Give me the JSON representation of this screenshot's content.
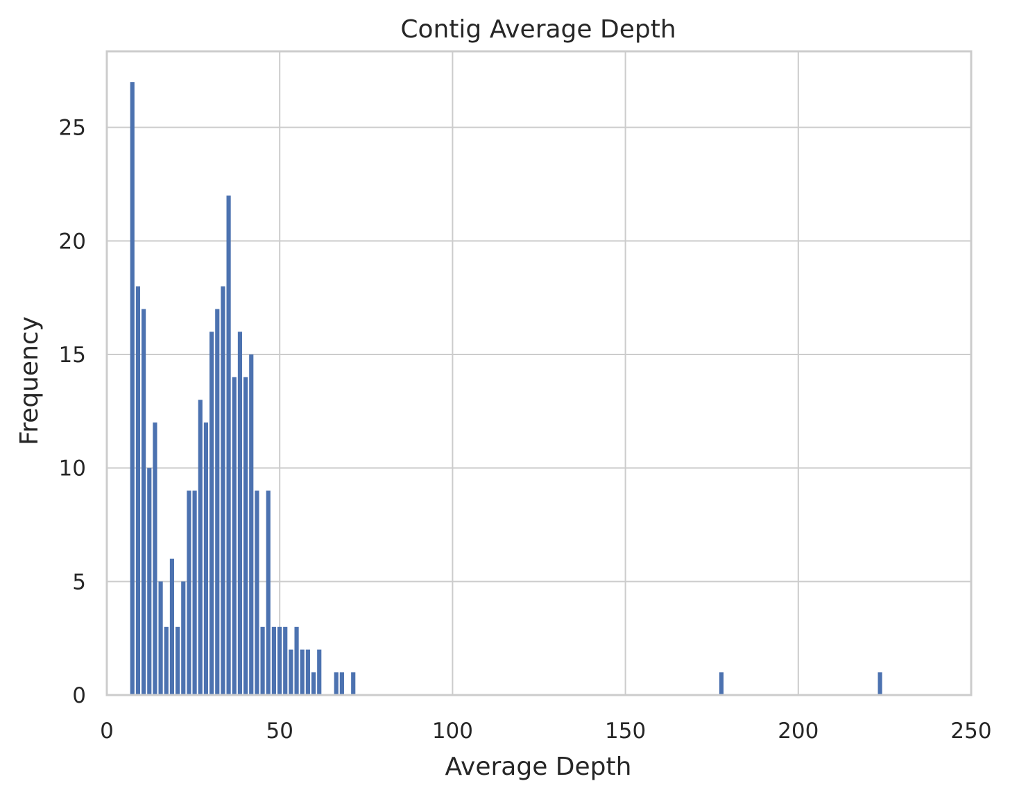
{
  "chart_data": {
    "type": "bar",
    "title": "Contig Average Depth",
    "xlabel": "Average Depth",
    "ylabel": "Frequency",
    "xlim": [
      0,
      250
    ],
    "ylim": [
      0,
      28.35
    ],
    "xticks": [
      0,
      50,
      100,
      150,
      200,
      250
    ],
    "yticks": [
      0,
      5,
      10,
      15,
      20,
      25
    ],
    "grid": true,
    "bar_color": "#4c72b0",
    "grid_color": "#cccccc",
    "bin_start": 6.56,
    "bin_width": 1.6383,
    "bins": [
      [
        0,
        27
      ],
      [
        1,
        18
      ],
      [
        2,
        17
      ],
      [
        3,
        10
      ],
      [
        4,
        12
      ],
      [
        5,
        5
      ],
      [
        6,
        3
      ],
      [
        7,
        6
      ],
      [
        8,
        3
      ],
      [
        9,
        5
      ],
      [
        10,
        9
      ],
      [
        11,
        9
      ],
      [
        12,
        13
      ],
      [
        13,
        12
      ],
      [
        14,
        16
      ],
      [
        15,
        17
      ],
      [
        16,
        18
      ],
      [
        17,
        22
      ],
      [
        18,
        14
      ],
      [
        19,
        16
      ],
      [
        20,
        14
      ],
      [
        21,
        15
      ],
      [
        22,
        9
      ],
      [
        23,
        3
      ],
      [
        24,
        9
      ],
      [
        25,
        3
      ],
      [
        26,
        3
      ],
      [
        27,
        3
      ],
      [
        28,
        2
      ],
      [
        29,
        3
      ],
      [
        30,
        2
      ],
      [
        31,
        2
      ],
      [
        32,
        1
      ],
      [
        33,
        2
      ],
      [
        36,
        1
      ],
      [
        37,
        1
      ],
      [
        39,
        1
      ],
      [
        104,
        1
      ],
      [
        132,
        1
      ]
    ]
  }
}
